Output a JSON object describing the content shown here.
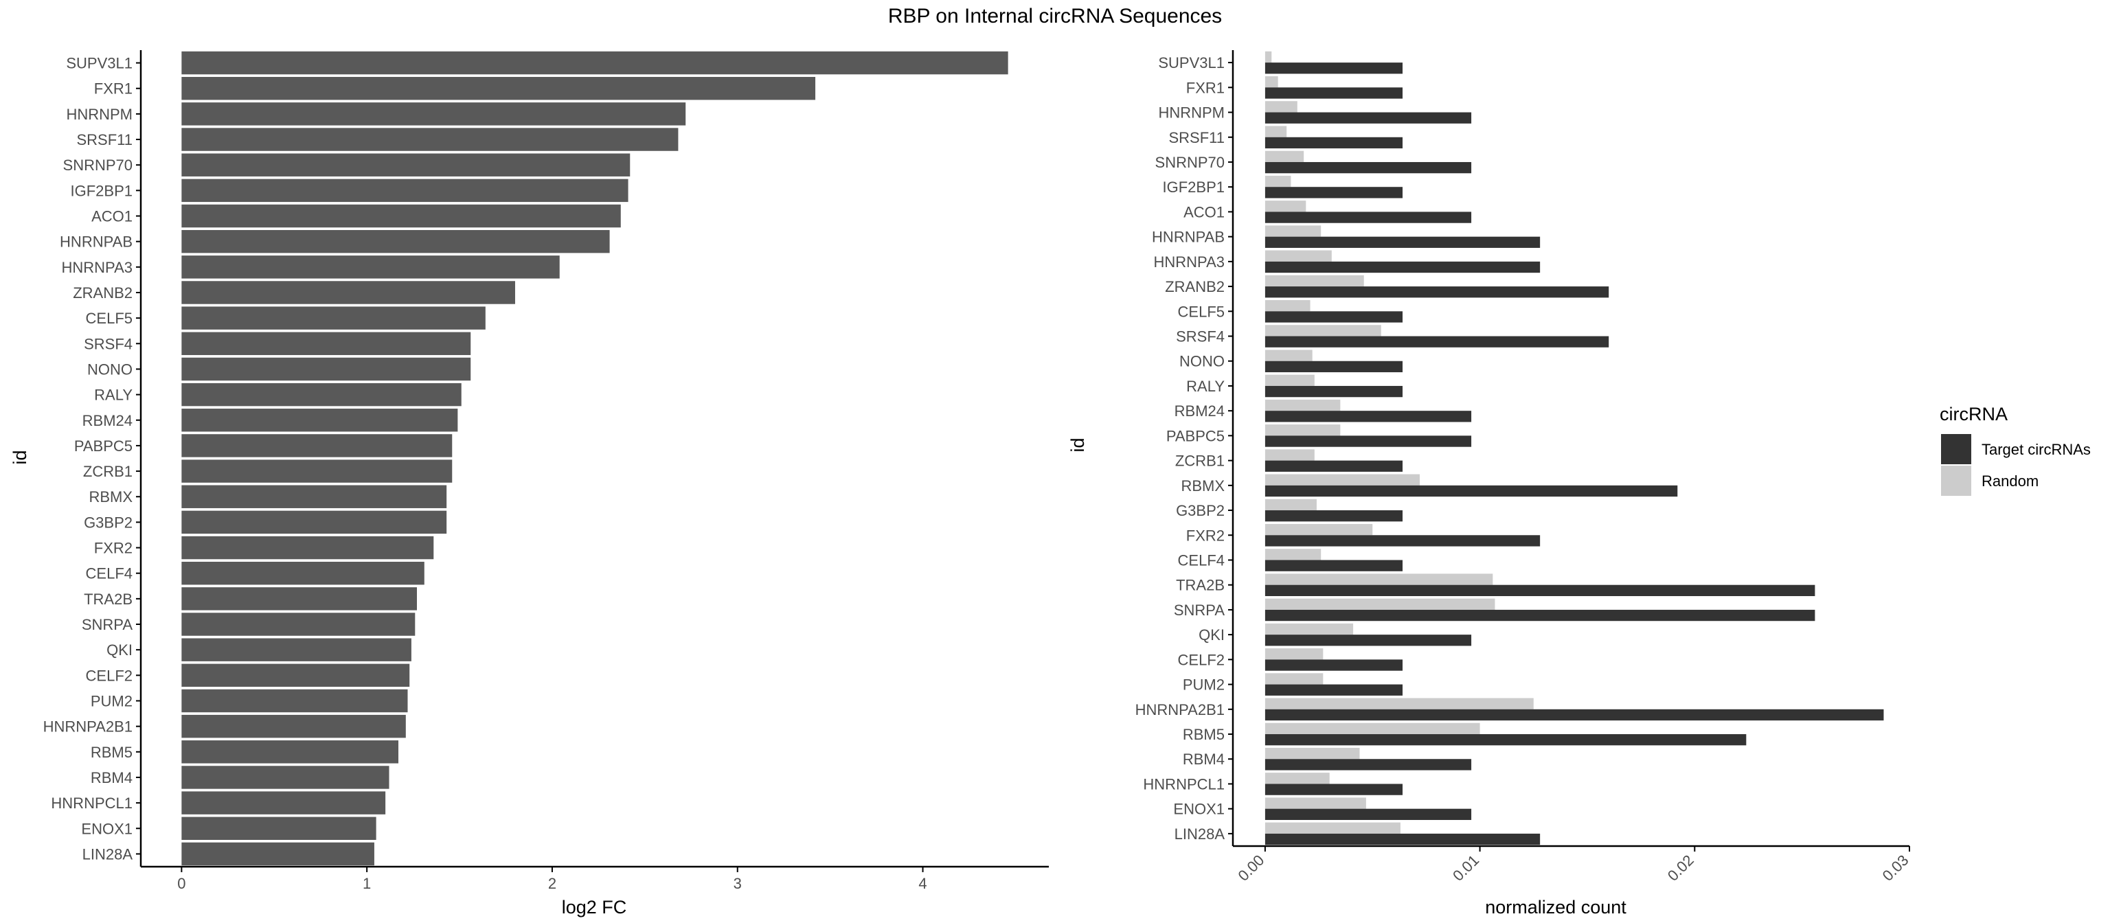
{
  "title": "RBP on Internal circRNA Sequences",
  "colors": {
    "fc_bar": "#595959",
    "target": "#333333",
    "random": "#cccccc",
    "axis": "#000000",
    "tick_text": "#4d4d4d"
  },
  "chart_data": [
    {
      "type": "bar",
      "orientation": "horizontal",
      "xlabel": "log2 FC",
      "ylabel": "id",
      "xlim": [
        -0.22,
        4.68
      ],
      "xticks": [
        "0",
        "1",
        "2",
        "3",
        "4"
      ],
      "grid": false,
      "categories": [
        "SUPV3L1",
        "FXR1",
        "HNRNPM",
        "SRSF11",
        "SNRNP70",
        "IGF2BP1",
        "ACO1",
        "HNRNPAB",
        "HNRNPA3",
        "ZRANB2",
        "CELF5",
        "SRSF4",
        "NONO",
        "RALY",
        "RBM24",
        "PABPC5",
        "ZCRB1",
        "RBMX",
        "G3BP2",
        "FXR2",
        "CELF4",
        "TRA2B",
        "SNRPA",
        "QKI",
        "CELF2",
        "PUM2",
        "HNRNPA2B1",
        "RBM5",
        "RBM4",
        "HNRNPCL1",
        "ENOX1",
        "LIN28A"
      ],
      "values": [
        4.46,
        3.42,
        2.72,
        2.68,
        2.42,
        2.41,
        2.37,
        2.31,
        2.04,
        1.8,
        1.64,
        1.56,
        1.56,
        1.51,
        1.49,
        1.46,
        1.46,
        1.43,
        1.43,
        1.36,
        1.31,
        1.27,
        1.26,
        1.24,
        1.23,
        1.22,
        1.21,
        1.17,
        1.12,
        1.1,
        1.05,
        1.04
      ]
    },
    {
      "type": "bar",
      "orientation": "horizontal",
      "grouped": true,
      "xlabel": "normalized count",
      "ylabel": "id",
      "xlim": [
        -0.0015,
        0.03
      ],
      "xticks": [
        "0.00",
        "0.01",
        "0.02",
        "0.03"
      ],
      "grid": false,
      "categories": [
        "SUPV3L1",
        "FXR1",
        "HNRNPM",
        "SRSF11",
        "SNRNP70",
        "IGF2BP1",
        "ACO1",
        "HNRNPAB",
        "HNRNPA3",
        "ZRANB2",
        "CELF5",
        "SRSF4",
        "NONO",
        "RALY",
        "RBM24",
        "PABPC5",
        "ZCRB1",
        "RBMX",
        "G3BP2",
        "FXR2",
        "CELF4",
        "TRA2B",
        "SNRPA",
        "QKI",
        "CELF2",
        "PUM2",
        "HNRNPA2B1",
        "RBM5",
        "RBM4",
        "HNRNPCL1",
        "ENOX1",
        "LIN28A"
      ],
      "legend": {
        "title": "circRNA",
        "position": "right"
      },
      "series": [
        {
          "name": "Target circRNAs",
          "values": [
            0.0064,
            0.0064,
            0.0096,
            0.0064,
            0.0096,
            0.0064,
            0.0096,
            0.0128,
            0.0128,
            0.016,
            0.0064,
            0.016,
            0.0064,
            0.0064,
            0.0096,
            0.0096,
            0.0064,
            0.0192,
            0.0064,
            0.0128,
            0.0064,
            0.0256,
            0.0256,
            0.0096,
            0.0064,
            0.0064,
            0.0288,
            0.0224,
            0.0096,
            0.0064,
            0.0096,
            0.0128
          ]
        },
        {
          "name": "Random",
          "values": [
            0.0003,
            0.0006,
            0.0015,
            0.001,
            0.0018,
            0.0012,
            0.0019,
            0.0026,
            0.0031,
            0.0046,
            0.0021,
            0.0054,
            0.0022,
            0.0023,
            0.0035,
            0.0035,
            0.0023,
            0.0072,
            0.0024,
            0.005,
            0.0026,
            0.0106,
            0.0107,
            0.0041,
            0.0027,
            0.0027,
            0.0125,
            0.01,
            0.0044,
            0.003,
            0.0047,
            0.0063
          ]
        }
      ]
    }
  ]
}
